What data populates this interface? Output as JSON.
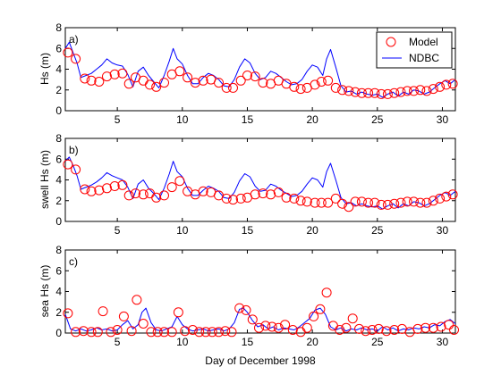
{
  "chart_data": [
    {
      "type": "line",
      "panel_tag": "a)",
      "title": "",
      "xlabel": "",
      "ylabel": "Hs (m)",
      "xlim": [
        1,
        31
      ],
      "ylim": [
        0,
        8
      ],
      "xticks": [
        5,
        10,
        15,
        20,
        25,
        30
      ],
      "yticks": [
        0,
        2,
        4,
        6,
        8
      ],
      "grid": false,
      "legend": {
        "position": "top-right",
        "entries": [
          "Model",
          "NDBC"
        ]
      },
      "series": [
        {
          "name": "NDBC",
          "style": "line",
          "color": "#0000ff",
          "x": [
            1.0,
            1.3,
            1.6,
            1.9,
            2.2,
            2.6,
            3.0,
            3.4,
            3.8,
            4.2,
            4.6,
            5.0,
            5.4,
            5.8,
            6.2,
            6.6,
            7.0,
            7.4,
            7.8,
            8.2,
            8.6,
            9.0,
            9.3,
            9.6,
            10.0,
            10.4,
            10.8,
            11.2,
            11.6,
            12.0,
            12.4,
            12.8,
            13.2,
            13.6,
            14.0,
            14.4,
            14.8,
            15.2,
            15.6,
            16.0,
            16.4,
            16.8,
            17.2,
            17.6,
            18.0,
            18.4,
            18.8,
            19.2,
            19.6,
            20.0,
            20.4,
            20.8,
            21.1,
            21.4,
            21.8,
            22.2,
            22.6,
            23.0,
            23.4,
            23.8,
            24.2,
            24.6,
            25.0,
            25.4,
            25.8,
            26.2,
            26.6,
            27.0,
            27.4,
            27.8,
            28.2,
            28.6,
            29.0,
            29.4,
            29.8,
            30.2,
            30.6,
            31.0
          ],
          "y": [
            6.0,
            6.6,
            5.6,
            4.6,
            3.2,
            3.4,
            3.6,
            4.0,
            4.4,
            5.0,
            4.6,
            4.4,
            4.3,
            3.5,
            2.3,
            3.8,
            4.2,
            3.4,
            2.8,
            2.2,
            3.4,
            4.8,
            6.0,
            5.0,
            4.5,
            3.4,
            2.6,
            2.6,
            3.2,
            3.6,
            3.4,
            3.0,
            2.4,
            2.3,
            3.0,
            4.2,
            5.0,
            4.6,
            3.6,
            3.0,
            3.2,
            3.8,
            3.6,
            3.2,
            2.8,
            2.5,
            2.6,
            3.0,
            3.8,
            4.4,
            4.2,
            3.4,
            5.0,
            5.9,
            4.2,
            2.4,
            1.8,
            1.9,
            1.6,
            1.8,
            1.6,
            1.5,
            1.6,
            1.3,
            1.6,
            1.8,
            1.4,
            1.8,
            1.6,
            2.0,
            1.9,
            1.6,
            1.8,
            2.2,
            2.6,
            2.9,
            2.6,
            3.0
          ]
        },
        {
          "name": "Model",
          "style": "circle",
          "color": "#ff0000",
          "x": [
            1.2,
            1.8,
            2.5,
            3.0,
            3.6,
            4.2,
            4.8,
            5.4,
            5.9,
            6.4,
            7.0,
            7.5,
            8.0,
            8.6,
            9.2,
            9.8,
            10.4,
            11.0,
            11.6,
            12.2,
            12.8,
            13.4,
            13.9,
            14.5,
            15.0,
            15.6,
            16.2,
            16.8,
            17.4,
            18.0,
            18.6,
            19.1,
            19.6,
            20.2,
            20.7,
            21.2,
            21.8,
            22.3,
            22.8,
            23.3,
            23.8,
            24.3,
            24.8,
            25.3,
            25.8,
            26.3,
            26.8,
            27.3,
            27.8,
            28.3,
            28.8,
            29.3,
            29.8,
            30.3,
            30.8
          ],
          "y": [
            5.6,
            5.0,
            3.1,
            2.9,
            2.8,
            3.3,
            3.5,
            3.6,
            2.6,
            3.2,
            2.9,
            2.5,
            2.3,
            2.7,
            3.5,
            3.8,
            3.2,
            2.7,
            2.9,
            3.0,
            2.7,
            2.2,
            2.2,
            2.9,
            3.4,
            3.3,
            2.7,
            2.6,
            2.9,
            2.6,
            2.3,
            2.1,
            2.2,
            2.5,
            2.8,
            2.9,
            2.2,
            2.0,
            1.9,
            1.8,
            1.7,
            1.7,
            1.7,
            1.6,
            1.6,
            1.7,
            1.8,
            1.9,
            1.9,
            2.0,
            1.9,
            2.1,
            2.3,
            2.5,
            2.6
          ]
        }
      ]
    },
    {
      "type": "line",
      "panel_tag": "b)",
      "title": "",
      "xlabel": "",
      "ylabel": "swell Hs (m)",
      "xlim": [
        1,
        31
      ],
      "ylim": [
        0,
        8
      ],
      "xticks": [
        5,
        10,
        15,
        20,
        25,
        30
      ],
      "yticks": [
        0,
        2,
        4,
        6,
        8
      ],
      "grid": false,
      "series": [
        {
          "name": "NDBC",
          "style": "line",
          "color": "#0000ff",
          "x": [
            1.0,
            1.3,
            1.6,
            1.9,
            2.2,
            2.6,
            3.0,
            3.4,
            3.8,
            4.2,
            4.6,
            5.0,
            5.4,
            5.8,
            6.2,
            6.6,
            7.0,
            7.4,
            7.8,
            8.2,
            8.6,
            9.0,
            9.3,
            9.6,
            10.0,
            10.4,
            10.8,
            11.2,
            11.6,
            12.0,
            12.4,
            12.8,
            13.2,
            13.6,
            14.0,
            14.4,
            14.8,
            15.2,
            15.6,
            16.0,
            16.4,
            16.8,
            17.2,
            17.6,
            18.0,
            18.4,
            18.8,
            19.2,
            19.6,
            20.0,
            20.4,
            20.8,
            21.1,
            21.4,
            21.8,
            22.2,
            22.6,
            23.0,
            23.4,
            23.8,
            24.2,
            24.6,
            25.0,
            25.4,
            25.8,
            26.2,
            26.6,
            27.0,
            27.4,
            27.8,
            28.2,
            28.6,
            29.0,
            29.4,
            29.8,
            30.2,
            30.6,
            31.0
          ],
          "y": [
            5.8,
            6.2,
            5.4,
            4.4,
            3.1,
            3.3,
            3.5,
            3.8,
            4.2,
            4.7,
            4.4,
            4.2,
            4.0,
            3.3,
            2.2,
            3.6,
            4.0,
            3.2,
            2.7,
            2.1,
            3.2,
            4.6,
            5.8,
            4.8,
            4.3,
            3.2,
            2.5,
            2.5,
            3.0,
            3.4,
            3.2,
            2.9,
            2.3,
            2.2,
            2.8,
            3.9,
            4.6,
            4.3,
            3.4,
            2.9,
            3.0,
            3.6,
            3.4,
            3.0,
            2.7,
            2.4,
            2.5,
            2.9,
            3.6,
            4.2,
            4.0,
            3.3,
            4.8,
            5.6,
            4.0,
            2.3,
            1.7,
            1.8,
            1.5,
            1.7,
            1.5,
            1.4,
            1.5,
            1.2,
            1.5,
            1.7,
            1.3,
            1.7,
            1.5,
            1.9,
            1.8,
            1.5,
            1.7,
            2.1,
            2.5,
            2.8,
            2.5,
            2.9
          ]
        },
        {
          "name": "Model",
          "style": "circle",
          "color": "#ff0000",
          "x": [
            1.2,
            1.8,
            2.5,
            3.0,
            3.6,
            4.2,
            4.8,
            5.4,
            5.9,
            6.4,
            7.0,
            7.5,
            8.0,
            8.6,
            9.2,
            9.8,
            10.4,
            11.0,
            11.6,
            12.2,
            12.8,
            13.4,
            13.9,
            14.5,
            15.0,
            15.6,
            16.2,
            16.8,
            17.4,
            18.0,
            18.6,
            19.1,
            19.6,
            20.2,
            20.7,
            21.2,
            21.8,
            22.3,
            22.8,
            23.3,
            23.8,
            24.3,
            24.8,
            25.3,
            25.8,
            26.3,
            26.8,
            27.3,
            27.8,
            28.3,
            28.8,
            29.3,
            29.8,
            30.3,
            30.8
          ],
          "y": [
            5.5,
            5.0,
            3.1,
            2.9,
            3.0,
            3.2,
            3.4,
            3.5,
            2.5,
            2.7,
            2.6,
            2.7,
            2.3,
            2.5,
            3.3,
            3.9,
            2.9,
            2.6,
            2.9,
            2.8,
            2.5,
            2.2,
            2.1,
            2.2,
            2.3,
            2.6,
            2.7,
            2.6,
            2.8,
            2.3,
            2.2,
            2.0,
            1.9,
            1.8,
            1.8,
            1.8,
            2.2,
            1.7,
            1.4,
            1.9,
            1.9,
            1.8,
            1.8,
            1.6,
            1.6,
            1.7,
            1.8,
            1.9,
            1.9,
            1.8,
            1.8,
            2.0,
            2.2,
            2.4,
            2.6
          ]
        }
      ]
    },
    {
      "type": "line",
      "panel_tag": "c)",
      "title": "",
      "xlabel": "Day of December 1998",
      "ylabel": "sea Hs (m)",
      "xlim": [
        1,
        31
      ],
      "ylim": [
        0,
        8
      ],
      "xticks": [
        5,
        10,
        15,
        20,
        25,
        30
      ],
      "yticks": [
        0,
        2,
        4,
        6,
        8
      ],
      "grid": false,
      "series": [
        {
          "name": "NDBC",
          "style": "line",
          "color": "#0000ff",
          "x": [
            1.0,
            1.4,
            1.8,
            2.2,
            2.6,
            3.0,
            3.4,
            3.8,
            4.2,
            4.6,
            5.0,
            5.4,
            5.8,
            6.2,
            6.6,
            6.9,
            7.2,
            7.6,
            8.0,
            8.4,
            8.8,
            9.2,
            9.6,
            10.0,
            10.4,
            10.8,
            11.2,
            11.6,
            12.0,
            12.4,
            12.8,
            13.2,
            13.6,
            14.0,
            14.4,
            14.7,
            15.0,
            15.4,
            15.8,
            16.2,
            16.6,
            17.0,
            17.4,
            17.8,
            18.2,
            18.6,
            19.0,
            19.4,
            19.8,
            20.2,
            20.6,
            21.0,
            21.4,
            21.8,
            22.2,
            22.6,
            23.0,
            23.4,
            23.8,
            24.2,
            24.6,
            25.0,
            25.4,
            25.8,
            26.2,
            26.6,
            27.0,
            27.4,
            27.8,
            28.2,
            28.6,
            29.0,
            29.4,
            29.8,
            30.2,
            30.6,
            31.0
          ],
          "y": [
            1.8,
            0.4,
            0.2,
            0.4,
            0.2,
            0.3,
            0.5,
            0.3,
            0.4,
            0.2,
            0.3,
            0.8,
            1.2,
            0.4,
            0.8,
            2.0,
            2.4,
            1.0,
            0.3,
            0.2,
            0.4,
            0.6,
            1.6,
            0.8,
            0.4,
            0.2,
            0.3,
            0.4,
            0.2,
            0.3,
            0.4,
            0.2,
            0.4,
            1.0,
            2.3,
            2.4,
            2.0,
            1.2,
            0.6,
            0.8,
            0.4,
            0.6,
            0.3,
            0.5,
            0.4,
            0.3,
            0.6,
            1.0,
            1.4,
            2.2,
            2.4,
            1.8,
            0.6,
            0.3,
            0.5,
            0.2,
            0.4,
            0.3,
            0.5,
            0.3,
            0.4,
            0.2,
            0.6,
            0.3,
            0.5,
            0.2,
            0.4,
            0.3,
            0.5,
            0.4,
            0.6,
            0.5,
            0.8,
            0.7,
            1.1,
            1.3,
            0.9
          ]
        },
        {
          "name": "Model",
          "style": "circle",
          "color": "#ff0000",
          "x": [
            1.2,
            1.8,
            2.4,
            3.0,
            3.5,
            3.9,
            4.5,
            5.0,
            5.5,
            6.1,
            6.5,
            7.0,
            7.6,
            8.1,
            8.6,
            9.2,
            9.7,
            10.2,
            10.8,
            11.3,
            11.8,
            12.3,
            12.8,
            13.3,
            13.8,
            14.4,
            14.9,
            15.4,
            15.9,
            16.4,
            16.9,
            17.4,
            17.9,
            18.5,
            19.1,
            19.6,
            20.1,
            20.6,
            21.1,
            21.6,
            22.1,
            22.6,
            23.1,
            23.6,
            24.1,
            24.6,
            25.1,
            25.7,
            26.3,
            26.9,
            27.5,
            28.1,
            28.7,
            29.3,
            29.9,
            30.5,
            30.9
          ],
          "y": [
            1.9,
            0.1,
            0.2,
            0.1,
            0.1,
            2.1,
            0.1,
            0.3,
            1.6,
            0.2,
            3.2,
            0.9,
            0.1,
            0.1,
            0.1,
            0.1,
            2.0,
            0.2,
            0.3,
            0.1,
            0.1,
            0.1,
            0.1,
            0.2,
            0.1,
            2.4,
            2.2,
            1.3,
            0.5,
            0.7,
            0.6,
            0.5,
            0.8,
            0.3,
            0.1,
            0.5,
            1.6,
            2.3,
            3.9,
            0.7,
            0.3,
            0.5,
            1.4,
            0.4,
            0.2,
            0.3,
            0.4,
            0.2,
            0.3,
            0.4,
            0.1,
            0.4,
            0.5,
            0.5,
            0.6,
            0.8,
            0.3
          ]
        }
      ]
    }
  ]
}
